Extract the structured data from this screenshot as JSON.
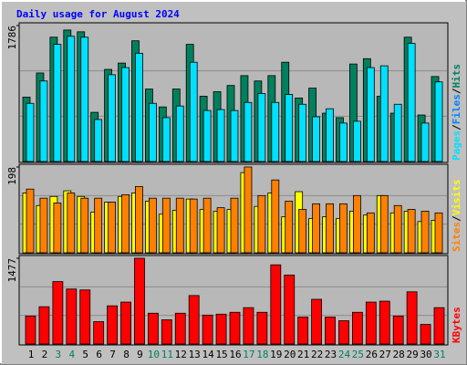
{
  "title": "Daily usage for August 2024",
  "chart_data": [
    {
      "type": "bar",
      "ylim": [
        0,
        1786
      ],
      "yticks": [
        1786
      ],
      "legend_separator": "/",
      "series": [
        {
          "name": "Hits",
          "color": "#00805c",
          "values": [
            846,
            1163,
            1633,
            1727,
            1704,
            646,
            1210,
            1293,
            1586,
            952,
            717,
            952,
            1539,
            858,
            917,
            999,
            1128,
            1058,
            1128,
            1304,
            834,
            964,
            635,
            576,
            1281,
            1351,
            858,
            635,
            1633,
            611,
            1116
          ]
        },
        {
          "name": "Files",
          "color": "#0080ff",
          "values": [
            null,
            null,
            null,
            null,
            null,
            null,
            null,
            null,
            null,
            null,
            null,
            null,
            null,
            null,
            null,
            null,
            null,
            null,
            null,
            null,
            null,
            null,
            null,
            null,
            null,
            null,
            null,
            null,
            null,
            null,
            null
          ]
        },
        {
          "name": "Pages",
          "color": "#00e0ff",
          "values": [
            764,
            1058,
            1539,
            1645,
            1633,
            552,
            1140,
            1234,
            1422,
            764,
            576,
            729,
            1304,
            670,
            682,
            670,
            776,
            893,
            776,
            881,
            752,
            588,
            693,
            505,
            529,
            1234,
            1257,
            752,
            1551,
            505,
            1046
          ]
        }
      ]
    },
    {
      "type": "bar",
      "ylim": [
        0,
        198
      ],
      "yticks": [
        198
      ],
      "legend_separator": "/",
      "series": [
        {
          "name": "Visits",
          "color": "#ffff00",
          "values": [
            138,
            109,
            130,
            143,
            130,
            94,
            117,
            130,
            138,
            119,
            89,
            98,
            124,
            100,
            96,
            100,
            185,
            107,
            138,
            83,
            141,
            79,
            83,
            79,
            96,
            87,
            132,
            92,
            96,
            72,
            75
          ]
        },
        {
          "name": "Sites",
          "color": "#ff8000",
          "values": [
            147,
            126,
            115,
            138,
            126,
            126,
            117,
            134,
            153,
            126,
            126,
            126,
            124,
            126,
            104,
            126,
            198,
            132,
            168,
            119,
            100,
            113,
            113,
            113,
            132,
            92,
            132,
            109,
            100,
            96,
            92
          ]
        }
      ]
    },
    {
      "type": "bar",
      "ylim": [
        0,
        1477
      ],
      "yticks": [
        1477
      ],
      "legend_separator": "/",
      "categories": [
        "1",
        "2",
        "3",
        "4",
        "5",
        "6",
        "7",
        "8",
        "9",
        "10",
        "11",
        "12",
        "13",
        "14",
        "15",
        "16",
        "17",
        "18",
        "19",
        "20",
        "21",
        "22",
        "23",
        "24",
        "25",
        "26",
        "27",
        "28",
        "29",
        "30",
        "31"
      ],
      "category_colors": [
        "#000000",
        "#000000",
        "#00805c",
        "#00805c",
        "#000000",
        "#000000",
        "#000000",
        "#000000",
        "#000000",
        "#00805c",
        "#00805c",
        "#000000",
        "#000000",
        "#000000",
        "#000000",
        "#000000",
        "#00805c",
        "#00805c",
        "#000000",
        "#000000",
        "#000000",
        "#000000",
        "#000000",
        "#00805c",
        "#00805c",
        "#000000",
        "#000000",
        "#000000",
        "#000000",
        "#000000",
        "#00805c"
      ],
      "series": [
        {
          "name": "KBytes",
          "color": "#ff0000",
          "values": [
            482,
            642,
            1075,
            947,
            931,
            385,
            658,
            722,
            1477,
            530,
            417,
            530,
            835,
            498,
            514,
            546,
            626,
            546,
            1364,
            1188,
            465,
            770,
            465,
            401,
            546,
            722,
            738,
            482,
            899,
            337,
            626
          ]
        }
      ]
    }
  ]
}
